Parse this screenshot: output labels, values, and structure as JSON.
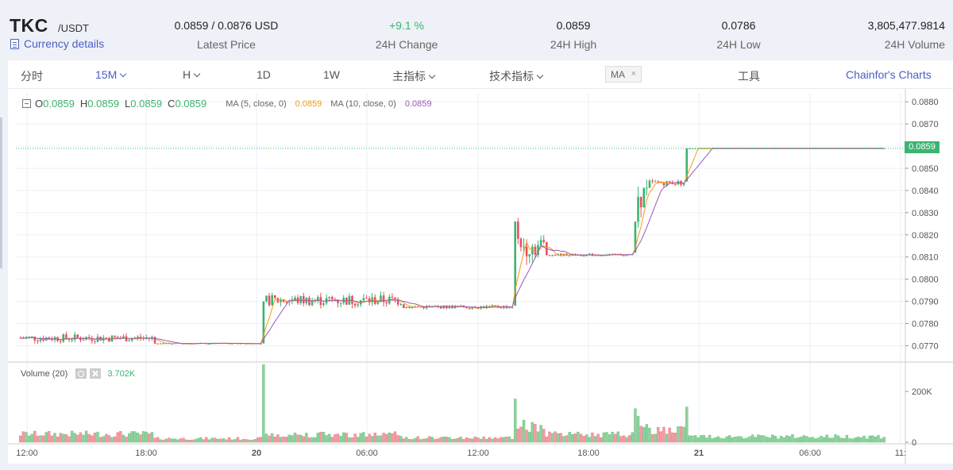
{
  "pair": {
    "base": "TKC",
    "quote": "/USDT",
    "details_label": "Currency details"
  },
  "stats": [
    {
      "value": "0.0859 / 0.0876 USD",
      "label": "Latest Price"
    },
    {
      "value": "+9.1 %",
      "label": "24H Change"
    },
    {
      "value": "0.0859",
      "label": "24H High"
    },
    {
      "value": "0.0786",
      "label": "24H Low"
    },
    {
      "value": "3,805,477.9814",
      "label": "24H Volume"
    }
  ],
  "toolbar": {
    "timeshare": "分时",
    "interval_15m": "15M",
    "interval_h": "H",
    "interval_1d": "1D",
    "interval_1w": "1W",
    "main_indicator": "主指标",
    "tech_indicator": "技术指标",
    "ma_tag": "MA",
    "ma_tag_close": "×",
    "tools": "工具",
    "chainfor": "Chainfor's Charts"
  },
  "legend": {
    "o_key": "O",
    "o_val": "0.0859",
    "h_key": "H",
    "h_val": "0.0859",
    "l_key": "L",
    "l_val": "0.0859",
    "c_key": "C",
    "c_val": "0.0859",
    "ma5_label": "MA (5, close, 0)",
    "ma5_val": "0.0859",
    "ma10_label": "MA (10, close, 0)",
    "ma10_val": "0.0859"
  },
  "volume_legend": {
    "label": "Volume (20)",
    "value": "3.702K"
  },
  "last_price_tag": "0.0859",
  "colors": {
    "up": "#3cb371",
    "down": "#e8505b",
    "ma5": "#f39c12",
    "ma10": "#9b59b6",
    "accent": "#4a5fc1"
  },
  "chart_data": {
    "type": "candlestick",
    "price_axis": {
      "ticks": [
        "0.0880",
        "0.0870",
        "0.0860",
        "0.0850",
        "0.0840",
        "0.0830",
        "0.0820",
        "0.0810",
        "0.0800",
        "0.0790",
        "0.0780",
        "0.0770"
      ],
      "range": [
        0.0763,
        0.0884
      ]
    },
    "volume_axis": {
      "ticks": [
        "200K",
        "0"
      ],
      "range": [
        0,
        310000
      ]
    },
    "time_axis": {
      "labels": [
        "12:00",
        "18:00",
        "20",
        "06:00",
        "12:00",
        "18:00",
        "21",
        "06:00",
        "11:"
      ]
    },
    "segments": [
      {
        "bars": 47,
        "mid": 0.07735,
        "jitter": 0.00018,
        "vol": 32000
      },
      {
        "bars": 38,
        "mid": 0.0771,
        "jitter": 3e-05,
        "vol": 14000
      },
      {
        "bars": 1,
        "open": 0.0771,
        "close": 0.079,
        "vol": 290000
      },
      {
        "bars": 48,
        "mid": 0.07905,
        "jitter": 0.00025,
        "vol": 30000
      },
      {
        "bars": 39,
        "mid": 0.07875,
        "jitter": 8e-05,
        "vol": 17000
      },
      {
        "bars": 1,
        "open": 0.0788,
        "close": 0.0826,
        "vol": 185000
      },
      {
        "bars": 10,
        "mid": 0.0815,
        "jitter": 0.0005,
        "vol": 65000
      },
      {
        "bars": 31,
        "mid": 0.0811,
        "jitter": 5e-05,
        "vol": 30000
      },
      {
        "bars": 1,
        "open": 0.0812,
        "close": 0.0826,
        "vol": 95000
      },
      {
        "bars": 4,
        "mid": 0.0838,
        "jitter": 0.0006,
        "vol": 80000
      },
      {
        "bars": 13,
        "mid": 0.08435,
        "jitter": 0.00012,
        "vol": 45000
      },
      {
        "bars": 1,
        "open": 0.0844,
        "close": 0.0859,
        "vol": 175000
      },
      {
        "bars": 69,
        "mid": 0.0859,
        "jitter": 0.0,
        "vol": 22000
      }
    ],
    "last_price": 0.0859
  }
}
